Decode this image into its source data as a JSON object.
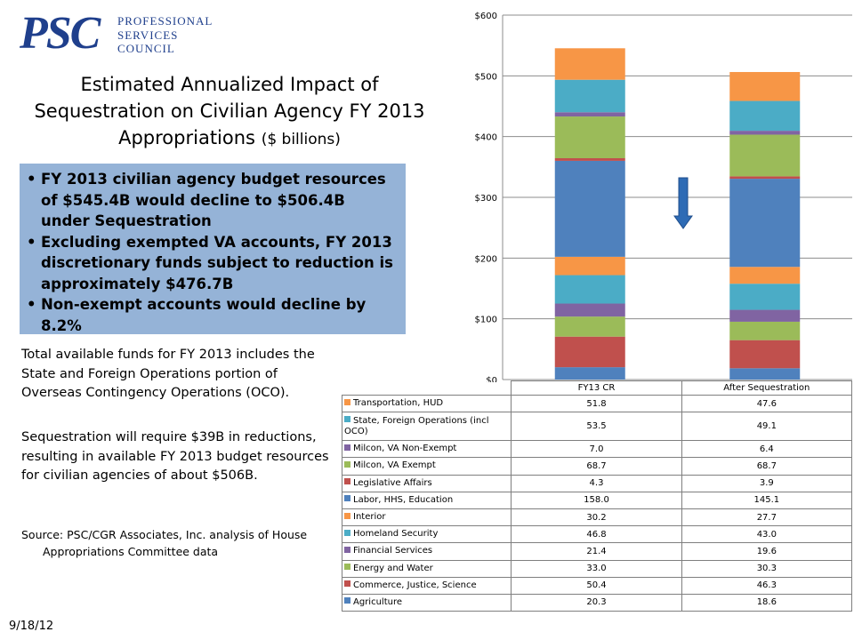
{
  "logo": {
    "mark": "PSC",
    "words": [
      "PROFESSIONAL",
      "SERVICES",
      "COUNCIL"
    ]
  },
  "title": {
    "line1": "Estimated Annualized Impact of",
    "line2": "Sequestration on Civilian Agency FY 2013",
    "line3": "Appropriations",
    "unit": "($ billions)"
  },
  "bullets": [
    "FY 2013 civilian agency budget resources of $545.4B would decline to $506.4B under Sequestration",
    "Excluding exempted VA accounts, FY 2013 discretionary funds subject to reduction is approximately $476.7B",
    "Non-exempt accounts would decline by 8.2%"
  ],
  "notes": {
    "para1": "Total available funds for FY 2013 includes the State and Foreign Operations portion of Overseas Contingency Operations (OCO).",
    "para2": "Sequestration will require $39B in reductions, resulting in available FY 2013 budget resources for civilian agencies of about $506B.",
    "source_line1": "Source: PSC/CGR Associates, Inc. analysis of House",
    "source_line2": "Appropriations Committee data"
  },
  "date": "9/18/12",
  "colors": {
    "logo": "#1f3f8c",
    "bullet_box": "#95b3d7",
    "arrow": "#2e6bb5"
  },
  "chart_data": {
    "type": "bar",
    "stacked": true,
    "categories": [
      "FY13 CR",
      "After Sequestration"
    ],
    "ylim": [
      0,
      600
    ],
    "yticks": [
      "$0",
      "$100",
      "$200",
      "$300",
      "$400",
      "$500",
      "$600"
    ],
    "grid": true,
    "legend": "data-table-below",
    "series": [
      {
        "name": "Agriculture",
        "values": [
          20.3,
          18.6
        ],
        "color": "#4f81bd"
      },
      {
        "name": "Commerce, Justice, Science",
        "values": [
          50.4,
          46.3
        ],
        "color": "#c0504d"
      },
      {
        "name": "Energy and Water",
        "values": [
          33.0,
          30.3
        ],
        "color": "#9bbb59"
      },
      {
        "name": "Financial Services",
        "values": [
          21.4,
          19.6
        ],
        "color": "#8064a2"
      },
      {
        "name": "Homeland Security",
        "values": [
          46.8,
          43.0
        ],
        "color": "#4bacc6"
      },
      {
        "name": "Interior",
        "values": [
          30.2,
          27.7
        ],
        "color": "#f79646"
      },
      {
        "name": "Labor, HHS, Education",
        "values": [
          158.0,
          145.1
        ],
        "color": "#4f81bd"
      },
      {
        "name": "Legislative Affairs",
        "values": [
          4.3,
          3.9
        ],
        "color": "#c0504d"
      },
      {
        "name": "Milcon, VA Exempt",
        "values": [
          68.7,
          68.7
        ],
        "color": "#9bbb59"
      },
      {
        "name": "Milcon, VA Non-Exempt",
        "values": [
          7.0,
          6.4
        ],
        "color": "#8064a2"
      },
      {
        "name": "State, Foreign Operations (incl OCO)",
        "values": [
          53.5,
          49.1
        ],
        "color": "#4bacc6"
      },
      {
        "name": "Transportation, HUD",
        "values": [
          51.8,
          47.6
        ],
        "color": "#f79646"
      }
    ],
    "table_values": [
      [
        "51.8",
        "47.6"
      ],
      [
        "53.5",
        "49.1"
      ],
      [
        "7.0",
        "6.4"
      ],
      [
        "68.7",
        "68.7"
      ],
      [
        "4.3",
        "3.9"
      ],
      [
        "158.0",
        "145.1"
      ],
      [
        "30.2",
        "27.7"
      ],
      [
        "46.8",
        "43.0"
      ],
      [
        "21.4",
        "19.6"
      ],
      [
        "33.0",
        "30.3"
      ],
      [
        "50.4",
        "46.3"
      ],
      [
        "20.3",
        "18.6"
      ]
    ]
  }
}
